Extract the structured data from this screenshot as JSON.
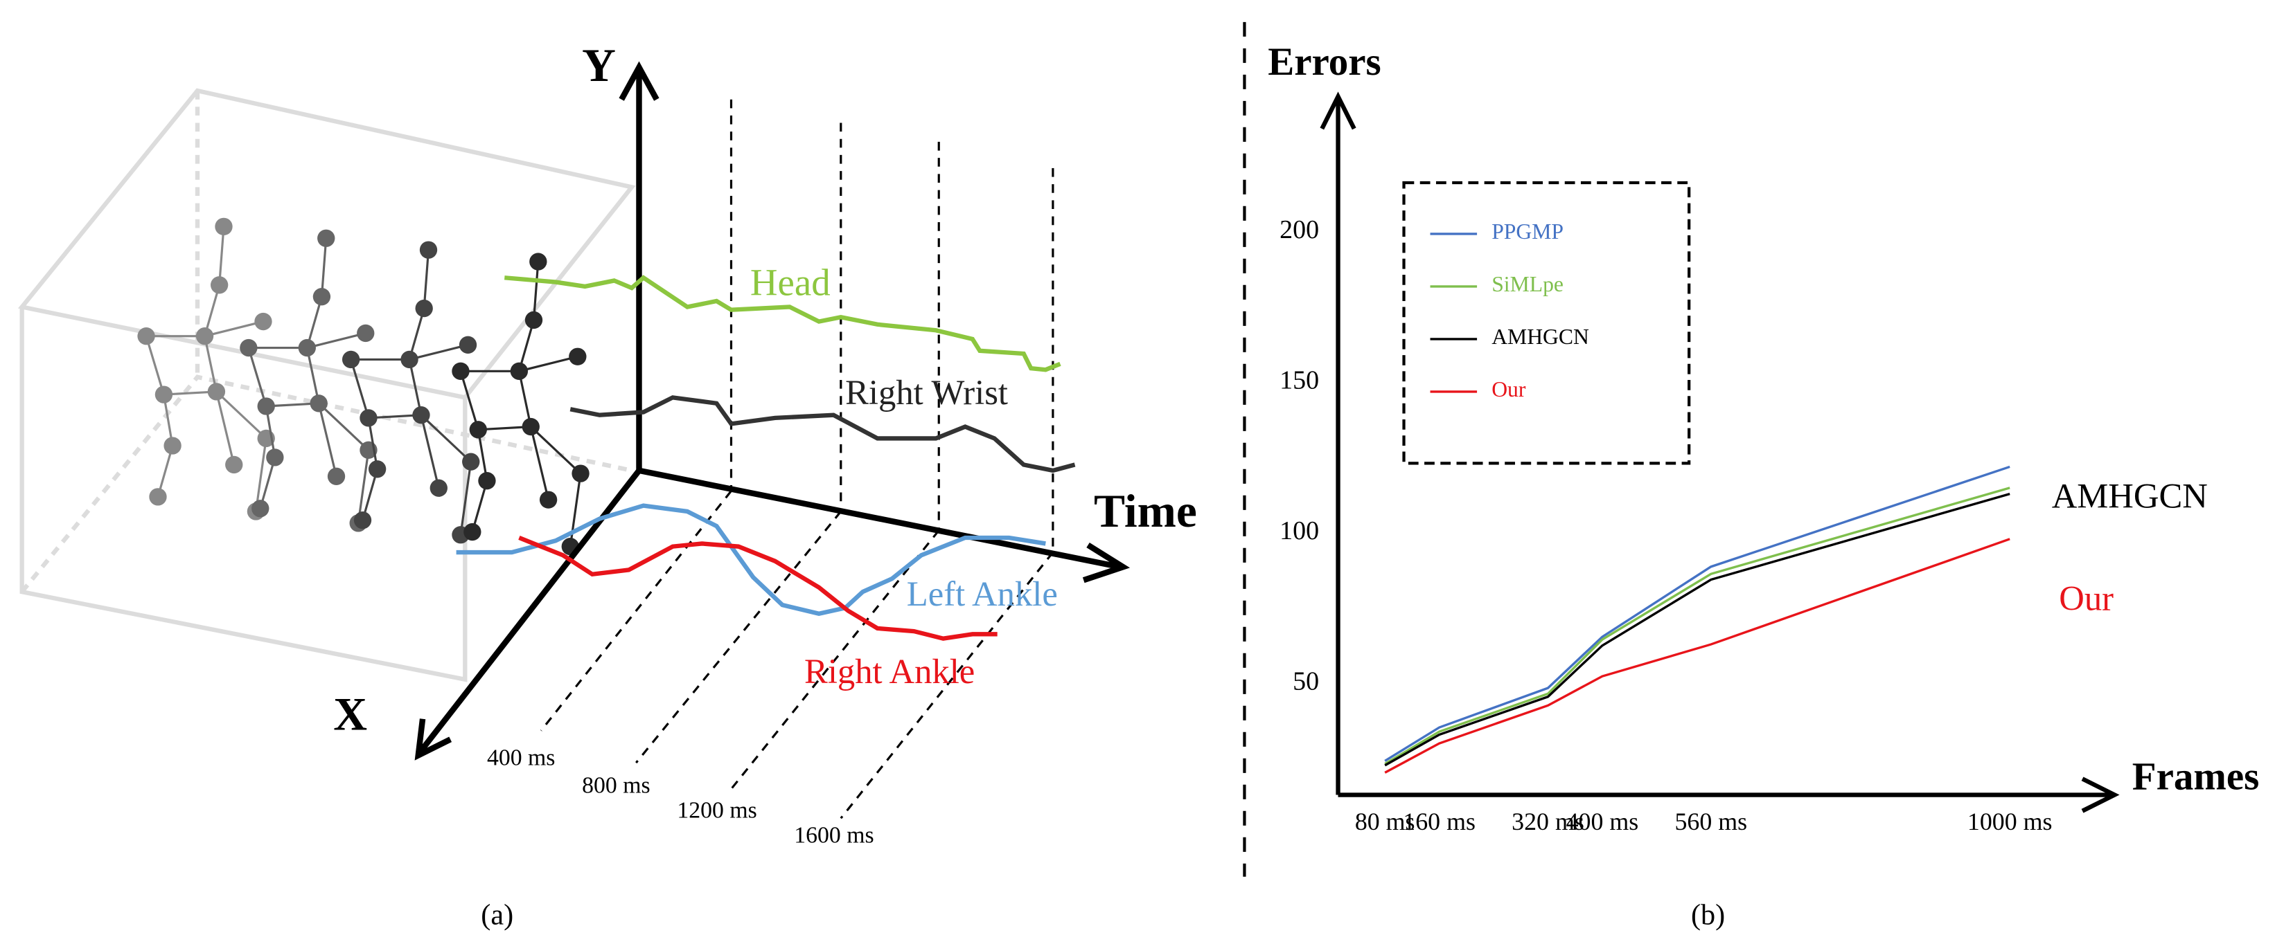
{
  "diagram": {
    "axis_y": "Y",
    "axis_x": "X",
    "axis_time": "Time",
    "joints": [
      "Head",
      "Right Wrist",
      "Left Ankle",
      "Right Ankle"
    ],
    "times": [
      "400 ms",
      "800 ms",
      "1200 ms",
      "1600 ms"
    ],
    "caption": "(a)"
  },
  "chart_data": {
    "type": "line",
    "ylabel": "Errors",
    "xlabel": "Frames",
    "caption": "(b)",
    "x": [
      80,
      160,
      320,
      400,
      560,
      1000
    ],
    "xlim": [
      11,
      1150
    ],
    "xticks": [
      {
        "value": 80,
        "label": "80 ms"
      },
      {
        "value": 160,
        "label": "160 ms"
      },
      {
        "value": 320,
        "label": "320 ms"
      },
      {
        "value": 400,
        "label": "400 ms"
      },
      {
        "value": 560,
        "label": "560 ms"
      },
      {
        "value": 1000,
        "label": "1000 ms"
      }
    ],
    "ylim": [
      13,
      245
    ],
    "yticks": [
      50,
      100,
      150,
      200
    ],
    "legend": "top-left",
    "series": [
      {
        "name": "PPGMP",
        "color": "#4472c4",
        "values": [
          24.3,
          35.4,
          48.5,
          65.5,
          88.8,
          122
        ]
      },
      {
        "name": "SiMLpe",
        "color": "#7fbf4d",
        "values": [
          23.3,
          34,
          46.6,
          64.6,
          86.4,
          115
        ]
      },
      {
        "name": "AMHGCN",
        "color": "#000000",
        "values": [
          22.8,
          33,
          45.6,
          62.6,
          84.5,
          113
        ]
      },
      {
        "name": "Our",
        "color": "#e8141a",
        "values": [
          20.4,
          30.1,
          42.7,
          52.4,
          63,
          98
        ]
      }
    ],
    "annotations": [
      "AMHGCN",
      "Our"
    ]
  }
}
